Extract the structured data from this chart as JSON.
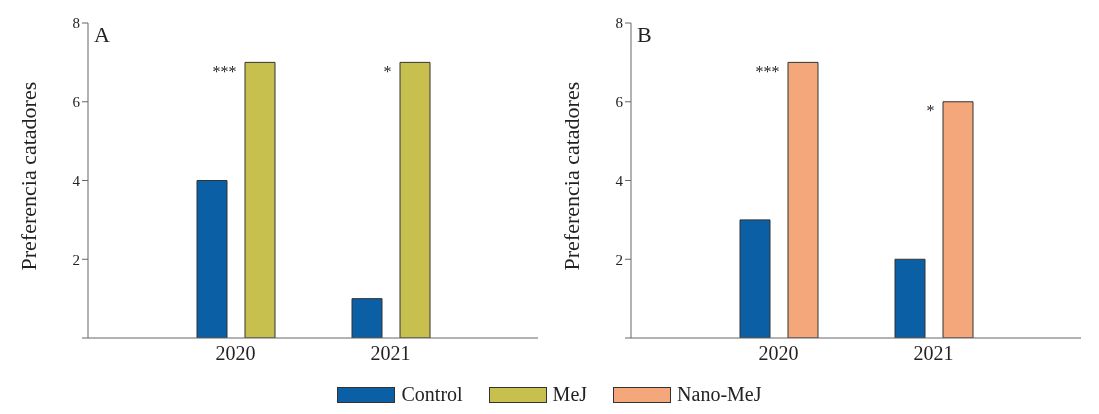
{
  "chart_data": [
    {
      "type": "bar",
      "ylabel": "Preferencia catadores",
      "categories": [
        "2020",
        "2021"
      ],
      "series": [
        {
          "name": "Control",
          "color": "#0b5fa5",
          "values": [
            4,
            1
          ]
        },
        {
          "name": "MeJ",
          "color": "#c8c04e",
          "values": [
            7,
            7
          ]
        }
      ],
      "ylim": [
        0,
        8
      ],
      "yticks": [
        {
          "value": 0,
          "label": null
        },
        2,
        4,
        6,
        8
      ],
      "legend": "bottom",
      "annotations": [
        "A",
        "***",
        "*"
      ]
    },
    {
      "type": "bar",
      "ylabel": "Preferencia catadores",
      "categories": [
        "2020",
        "2021"
      ],
      "series": [
        {
          "name": "Control",
          "color": "#0b5fa5",
          "values": [
            3,
            2
          ]
        },
        {
          "name": "Nano-MeJ",
          "color": "#f5a77c",
          "values": [
            7,
            6
          ]
        }
      ],
      "ylim": [
        0,
        8
      ],
      "yticks": [
        {
          "value": 0,
          "label": null
        },
        2,
        4,
        6,
        8
      ],
      "legend": "bottom",
      "annotations": [
        "B",
        "***",
        "*"
      ]
    }
  ]
}
